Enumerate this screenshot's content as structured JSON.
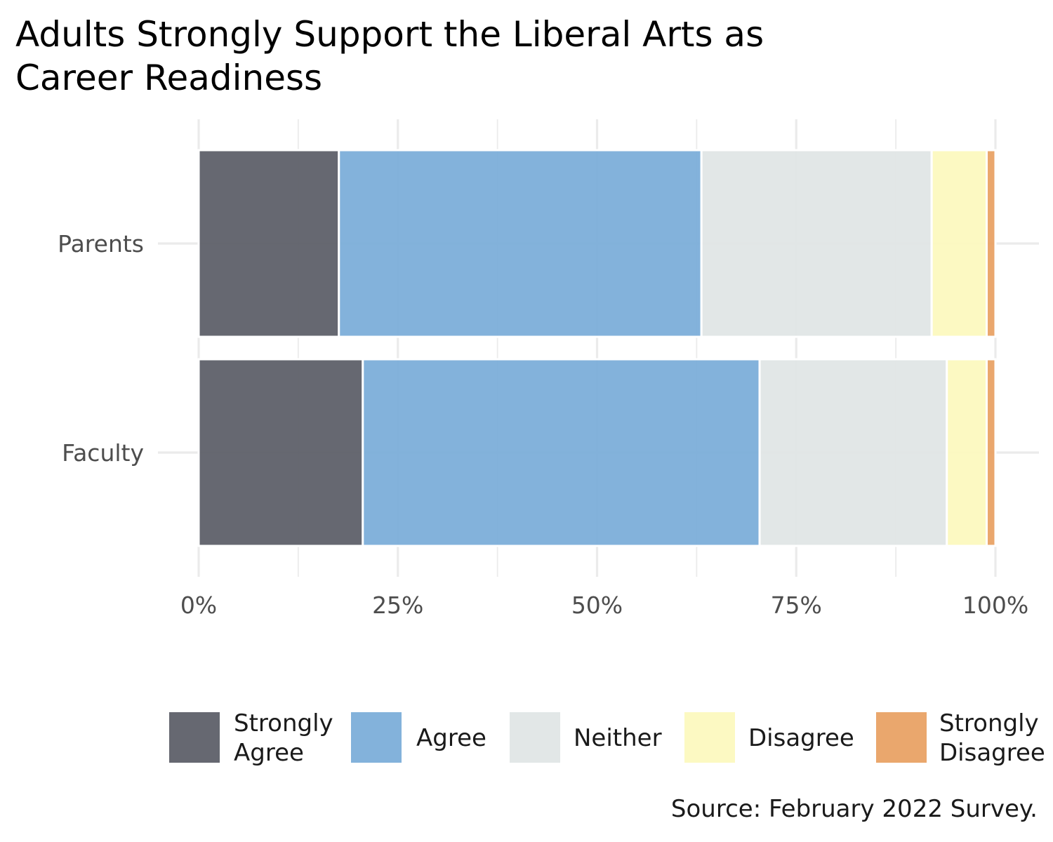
{
  "chart_data": {
    "type": "bar",
    "orientation": "horizontal",
    "stacked": true,
    "title_lines": [
      "Adults Strongly Support the Liberal Arts as",
      "Career Readiness"
    ],
    "caption": "Source: February 2022 Survey.",
    "categories": [
      "Parents",
      "Faculty"
    ],
    "x_ticks": [
      "0%",
      "25%",
      "50%",
      "75%",
      "100%"
    ],
    "xlim": [
      0,
      100
    ],
    "grid": true,
    "legend_position": "bottom",
    "series": [
      {
        "name": "Strongly Agree",
        "label_lines": [
          "Strongly",
          "Agree"
        ],
        "color": "#5a5c66",
        "values": [
          17.6,
          20.6
        ]
      },
      {
        "name": "Agree",
        "label_lines": [
          "Agree"
        ],
        "color": "#7aacd8",
        "values": [
          45.5,
          49.8
        ]
      },
      {
        "name": "Neither",
        "label_lines": [
          "Neither"
        ],
        "color": "#e0e5e5",
        "values": [
          28.9,
          23.5
        ]
      },
      {
        "name": "Disagree",
        "label_lines": [
          "Disagree"
        ],
        "color": "#fcf9bd",
        "values": [
          6.9,
          5.0
        ]
      },
      {
        "name": "Strongly Disagree",
        "label_lines": [
          "Strongly",
          "Disagree"
        ],
        "color": "#e8a062",
        "values": [
          1.1,
          1.1
        ]
      }
    ]
  }
}
